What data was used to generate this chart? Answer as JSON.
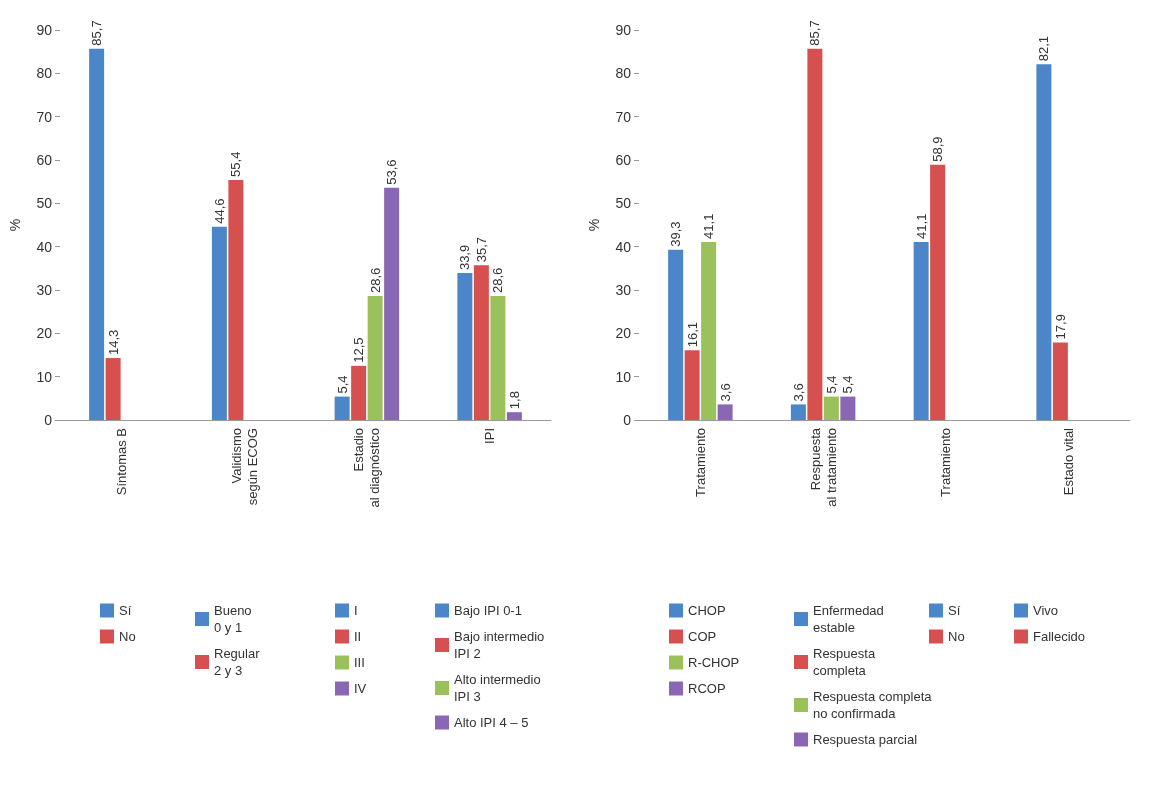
{
  "chart_data": [
    {
      "type": "bar",
      "ylabel": "%",
      "categories": [
        "Síntomas B",
        "Validismo\nsegún ECOG",
        "Estadio\nal diagnóstico",
        "IPI"
      ],
      "ylim": [
        0,
        90
      ],
      "yticks": [
        0,
        10,
        20,
        30,
        40,
        50,
        60,
        70,
        80,
        90
      ],
      "grid": false,
      "legend": "bottom",
      "series": [
        {
          "name": "Sí",
          "color": "#4a86c8",
          "values": [
            85.7,
            null,
            null,
            null
          ],
          "value_labels": [
            "85,7",
            null,
            null,
            null
          ]
        },
        {
          "name": "No",
          "color": "#d75050",
          "values": [
            14.3,
            null,
            null,
            null
          ],
          "value_labels": [
            "14,3",
            null,
            null,
            null
          ]
        },
        {
          "name": "Bueno\n0 y 1",
          "color": "#4a86c8",
          "values": [
            null,
            44.6,
            null,
            null
          ],
          "value_labels": [
            null,
            "44,6",
            null,
            null
          ]
        },
        {
          "name": "Regular\n2 y 3",
          "color": "#d75050",
          "values": [
            null,
            55.4,
            null,
            null
          ],
          "value_labels": [
            null,
            "55,4",
            null,
            null
          ]
        },
        {
          "name": "I",
          "color": "#4a86c8",
          "values": [
            null,
            null,
            5.4,
            null
          ],
          "value_labels": [
            null,
            null,
            "5,4",
            null
          ]
        },
        {
          "name": "II",
          "color": "#d75050",
          "values": [
            null,
            null,
            12.5,
            null
          ],
          "value_labels": [
            null,
            null,
            "12,5",
            null
          ]
        },
        {
          "name": "III",
          "color": "#9bc15a",
          "values": [
            null,
            null,
            28.6,
            null
          ],
          "value_labels": [
            null,
            null,
            "28,6",
            null
          ]
        },
        {
          "name": "IV",
          "color": "#8a66b4",
          "values": [
            null,
            null,
            53.6,
            null
          ],
          "value_labels": [
            null,
            null,
            "53,6",
            null
          ]
        },
        {
          "name": "Bajo IPI 0-1",
          "color": "#4a86c8",
          "values": [
            null,
            null,
            null,
            33.9
          ],
          "value_labels": [
            null,
            null,
            null,
            "33,9"
          ]
        },
        {
          "name": "Bajo intermedio\nIPI 2",
          "color": "#d75050",
          "values": [
            null,
            null,
            null,
            35.7
          ],
          "value_labels": [
            null,
            null,
            null,
            "35,7"
          ]
        },
        {
          "name": "Alto intermedio\nIPI 3",
          "color": "#9bc15a",
          "values": [
            null,
            null,
            null,
            28.6
          ],
          "value_labels": [
            null,
            null,
            null,
            "28,6"
          ]
        },
        {
          "name": "Alto IPI 4 – 5",
          "color": "#8a66b4",
          "values": [
            null,
            null,
            null,
            1.8
          ],
          "value_labels": [
            null,
            null,
            null,
            "1,8"
          ]
        }
      ]
    },
    {
      "type": "bar",
      "ylabel": "%",
      "categories": [
        "Tratamiento",
        "Respuesta\nal tratamiento",
        "Tratamiento",
        "Estado vital"
      ],
      "ylim": [
        0,
        90
      ],
      "yticks": [
        0,
        10,
        20,
        30,
        40,
        50,
        60,
        70,
        80,
        90
      ],
      "grid": false,
      "legend": "bottom",
      "series": [
        {
          "name": "CHOP",
          "color": "#4a86c8",
          "values": [
            39.3,
            null,
            null,
            null
          ],
          "value_labels": [
            "39,3",
            null,
            null,
            null
          ]
        },
        {
          "name": "COP",
          "color": "#d75050",
          "values": [
            16.1,
            null,
            null,
            null
          ],
          "value_labels": [
            "16,1",
            null,
            null,
            null
          ]
        },
        {
          "name": "R-CHOP",
          "color": "#9bc15a",
          "values": [
            41.1,
            null,
            null,
            null
          ],
          "value_labels": [
            "41,1",
            null,
            null,
            null
          ]
        },
        {
          "name": "RCOP",
          "color": "#8a66b4",
          "values": [
            3.6,
            null,
            null,
            null
          ],
          "value_labels": [
            "3,6",
            null,
            null,
            null
          ]
        },
        {
          "name": "Enfermedad\nestable",
          "color": "#4a86c8",
          "values": [
            null,
            3.6,
            null,
            null
          ],
          "value_labels": [
            null,
            "3,6",
            null,
            null
          ]
        },
        {
          "name": "Respuesta\ncompleta",
          "color": "#d75050",
          "values": [
            null,
            85.7,
            null,
            null
          ],
          "value_labels": [
            null,
            "85,7",
            null,
            null
          ]
        },
        {
          "name": "Respuesta completa\nno confirmada",
          "color": "#9bc15a",
          "values": [
            null,
            5.4,
            null,
            null
          ],
          "value_labels": [
            null,
            "5,4",
            null,
            null
          ]
        },
        {
          "name": "Respuesta parcial",
          "color": "#8a66b4",
          "values": [
            null,
            5.4,
            null,
            null
          ],
          "value_labels": [
            null,
            "5,4",
            null,
            null
          ]
        },
        {
          "name": "Sí",
          "color": "#4a86c8",
          "values": [
            null,
            null,
            41.1,
            null
          ],
          "value_labels": [
            null,
            null,
            "41,1",
            null
          ]
        },
        {
          "name": "No",
          "color": "#d75050",
          "values": [
            null,
            null,
            58.9,
            null
          ],
          "value_labels": [
            null,
            null,
            "58,9",
            null
          ]
        },
        {
          "name": "Vivo",
          "color": "#4a86c8",
          "values": [
            null,
            null,
            null,
            82.1
          ],
          "value_labels": [
            null,
            null,
            null,
            "82,1"
          ]
        },
        {
          "name": "Fallecido",
          "color": "#d75050",
          "values": [
            null,
            null,
            null,
            17.9
          ],
          "value_labels": [
            null,
            null,
            null,
            "17,9"
          ]
        }
      ]
    }
  ]
}
